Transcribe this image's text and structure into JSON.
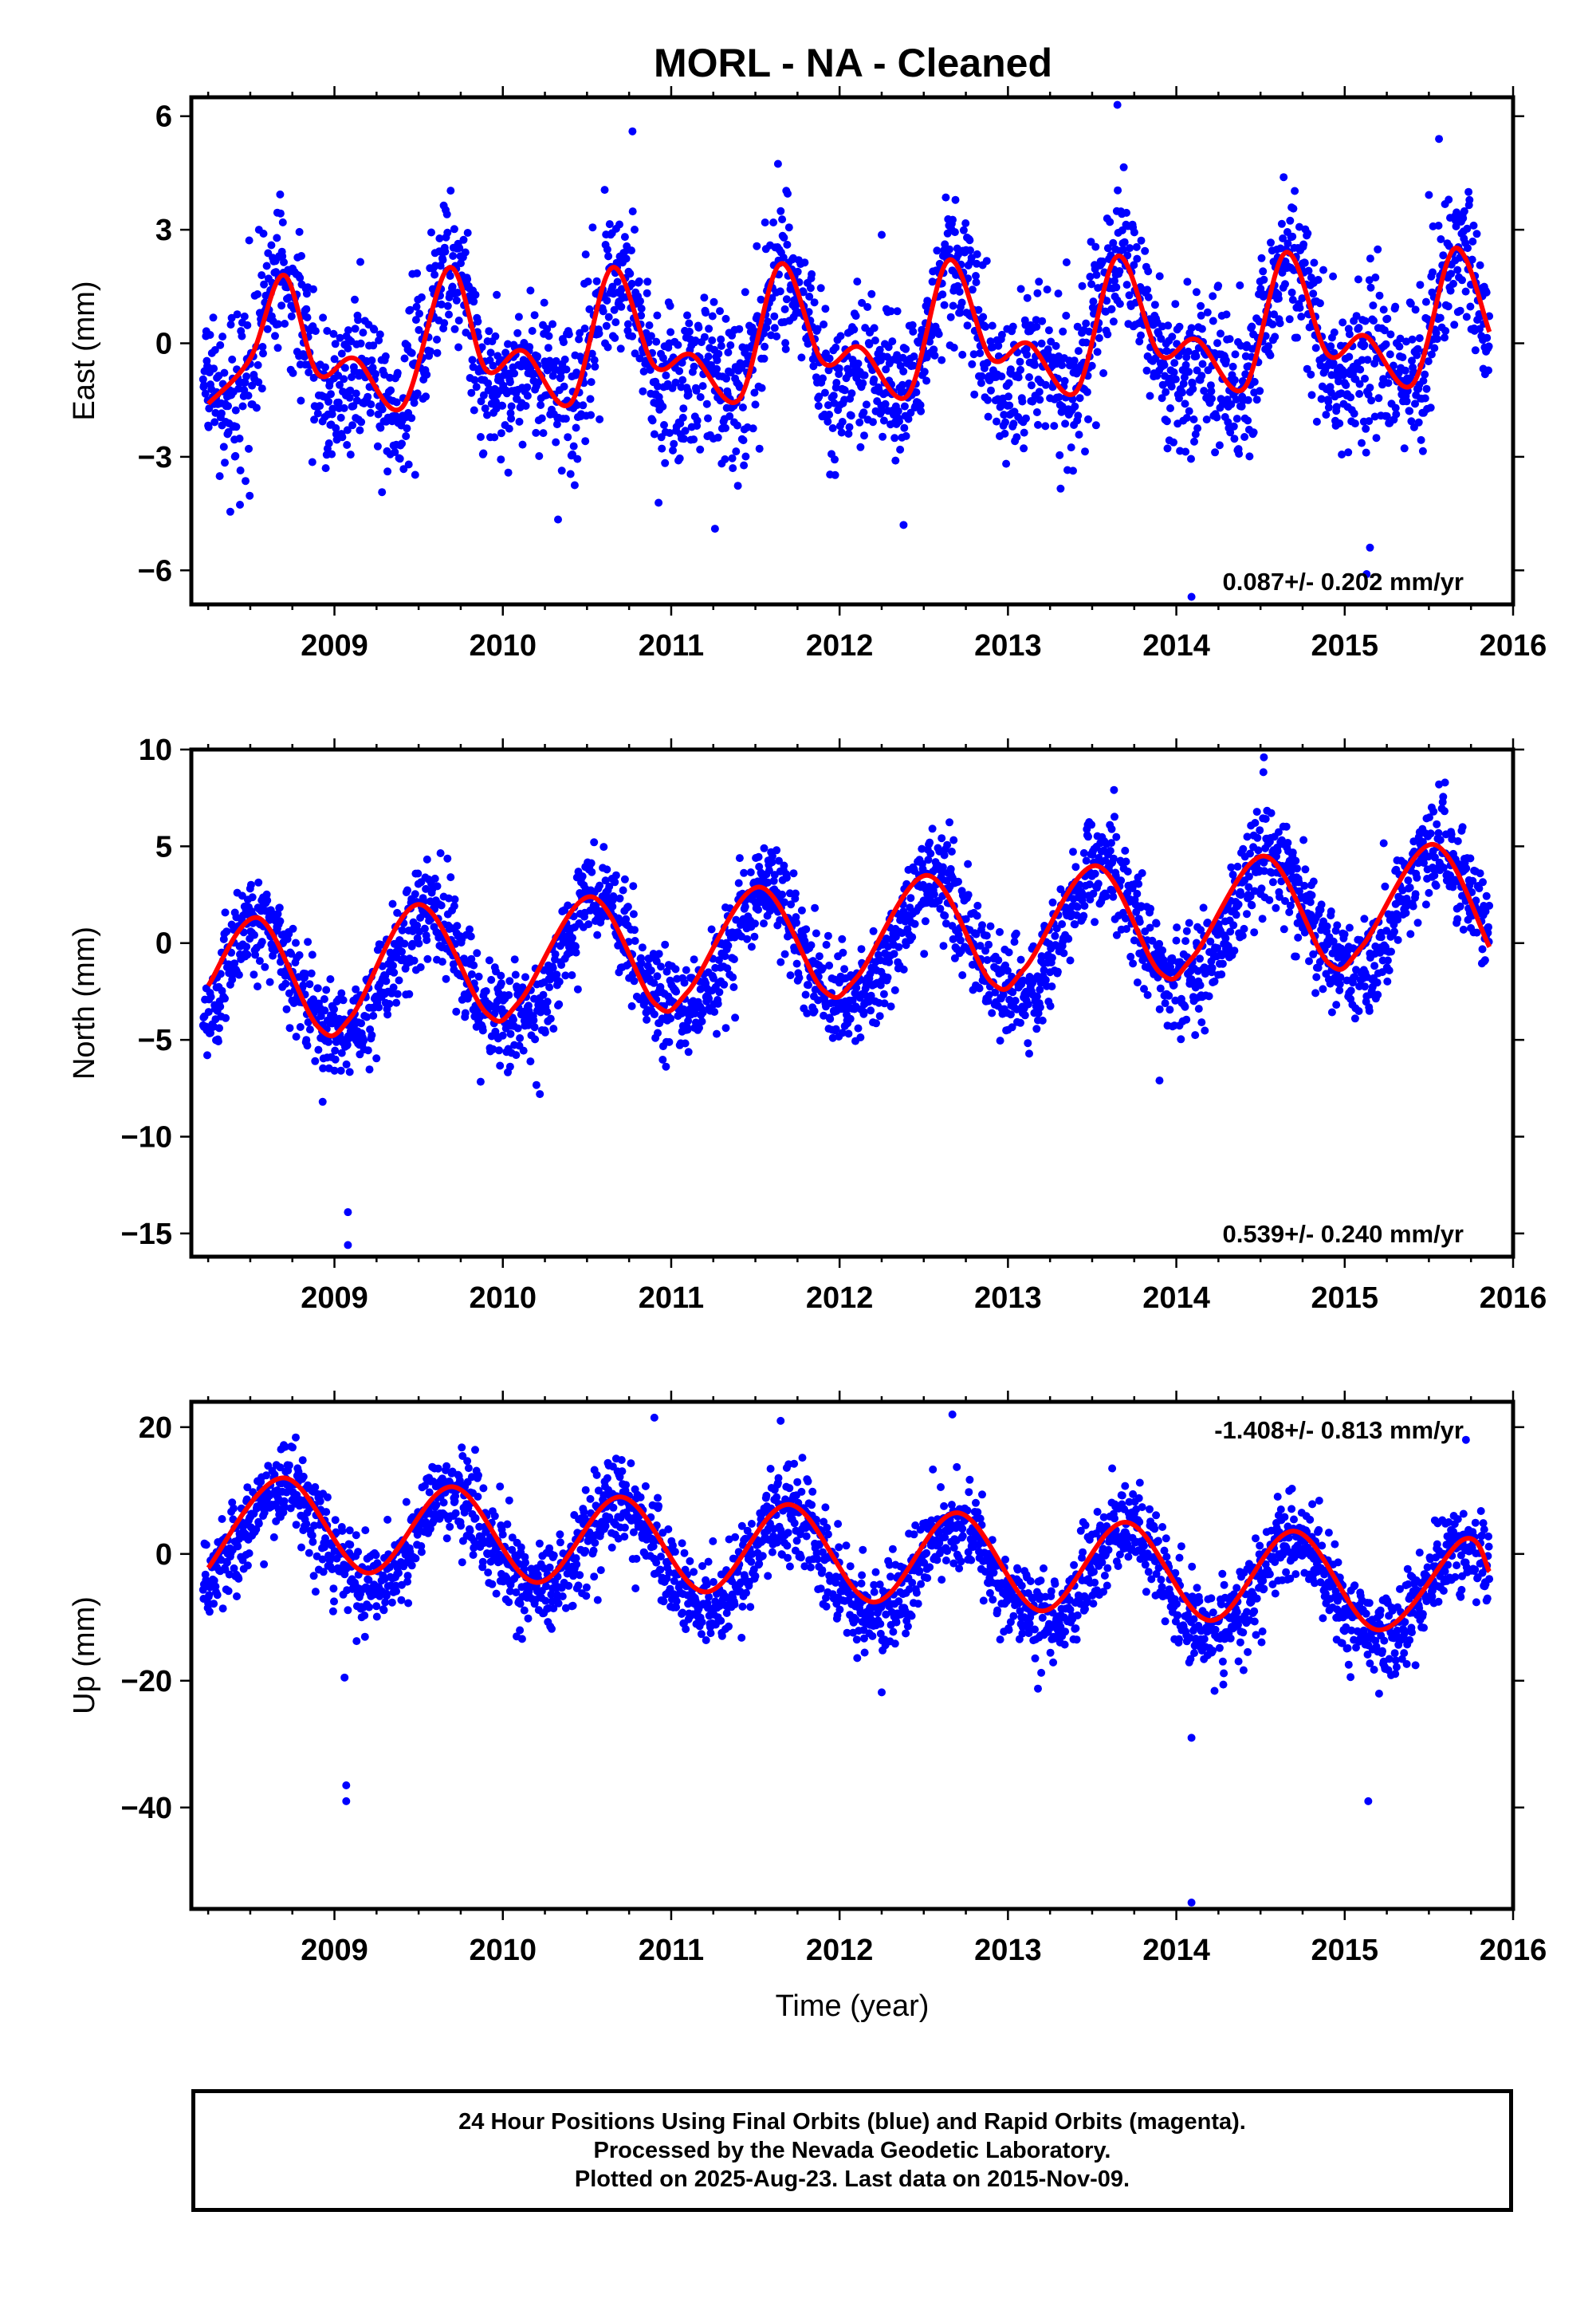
{
  "title": "MORL  - NA - Cleaned",
  "footer": {
    "line1": "24 Hour Positions Using Final Orbits (blue) and Rapid Orbits (magenta).",
    "line2": "Processed by the Nevada Geodetic Laboratory.",
    "line3": "Plotted on 2025-Aug-23. Last data on 2015-Nov-09."
  },
  "colors": {
    "points": "#0000ff",
    "fit": "#ff0000",
    "frame": "#000000"
  },
  "chart_data": [
    {
      "type": "scatter",
      "ylabel": "East (mm)",
      "xlabel": "",
      "xlim": [
        2008.15,
        2016.0
      ],
      "ylim": [
        -6.9,
        6.5
      ],
      "xticks": [
        2009,
        2010,
        2011,
        2012,
        2013,
        2014,
        2015,
        2016
      ],
      "yticks": [
        -6,
        -3,
        0,
        3,
        6
      ],
      "yticklabels": [
        "−6",
        "−3",
        "0",
        "3",
        "6"
      ],
      "rate_label": "0.087+/- 0.202 mm/yr",
      "rate_position": "bottom-right",
      "data_range": [
        2008.22,
        2015.86
      ],
      "model": {
        "offset": -0.15,
        "rate": 0.087,
        "t0": 2012.0,
        "a1": 1.3,
        "p1": 2008.68,
        "a2": 0.9,
        "p2": 2008.68,
        "noise_sd": 1.0
      },
      "fit_series": {
        "name": "",
        "x": [
          2008.25,
          2008.5,
          2008.7,
          2008.9,
          2009.12,
          2009.4,
          2009.68,
          2009.9,
          2010.12,
          2010.4,
          2010.65,
          2010.9,
          2011.12,
          2011.4,
          2011.65,
          2011.9,
          2012.12,
          2012.4,
          2012.65,
          2012.9,
          2013.12,
          2013.4,
          2013.65,
          2013.9,
          2014.12,
          2014.4,
          2014.65,
          2014.9,
          2015.12,
          2015.4,
          2015.65,
          2015.86
        ],
        "y": [
          -1.6,
          -0.4,
          1.8,
          -0.8,
          -0.4,
          -1.7,
          2.0,
          -0.7,
          -0.2,
          -1.6,
          2.0,
          -0.6,
          -0.3,
          -1.5,
          2.1,
          -0.5,
          -0.1,
          -1.4,
          2.2,
          -0.4,
          0.0,
          -1.3,
          2.3,
          -0.3,
          0.1,
          -1.2,
          2.4,
          -0.3,
          0.2,
          -1.1,
          2.5,
          0.3
        ]
      },
      "outliers": [
        {
          "x": 2010.77,
          "y": 5.6
        },
        {
          "x": 2012.38,
          "y": -4.8
        },
        {
          "x": 2013.65,
          "y": 6.3
        },
        {
          "x": 2014.09,
          "y": -6.7
        },
        {
          "x": 2015.15,
          "y": -5.4
        },
        {
          "x": 2015.13,
          "y": -6.1
        },
        {
          "x": 2011.26,
          "y": -4.9
        },
        {
          "x": 2015.56,
          "y": 5.4
        }
      ]
    },
    {
      "type": "scatter",
      "ylabel": "North (mm)",
      "xlabel": "",
      "xlim": [
        2008.15,
        2016.0
      ],
      "ylim": [
        -16.2,
        10.0
      ],
      "xticks": [
        2009,
        2010,
        2011,
        2012,
        2013,
        2014,
        2015,
        2016
      ],
      "yticks": [
        -15,
        -10,
        -5,
        0,
        5,
        10
      ],
      "yticklabels": [
        "−15",
        "−10",
        "−5",
        "0",
        "5",
        "10"
      ],
      "rate_label": "0.539+/- 0.240 mm/yr",
      "rate_position": "bottom-right",
      "data_range": [
        2008.22,
        2015.86
      ],
      "model": {
        "offset": -0.3,
        "rate": 0.539,
        "t0": 2012.0,
        "a1": 3.1,
        "p1": 2008.55,
        "a2": 0.4,
        "p2": 2008.55,
        "noise_sd": 1.3
      },
      "fit_series": {
        "name": "",
        "x": [
          2008.25,
          2008.55,
          2008.9,
          2009.1,
          2009.5,
          2009.9,
          2010.1,
          2010.52,
          2010.9,
          2011.1,
          2011.52,
          2011.9,
          2012.1,
          2012.52,
          2012.9,
          2013.1,
          2013.52,
          2013.9,
          2014.1,
          2014.52,
          2014.9,
          2015.1,
          2015.52,
          2015.86
        ],
        "y": [
          -2.2,
          1.3,
          -4.3,
          -3.8,
          2.0,
          -3.6,
          -3.0,
          2.4,
          -3.1,
          -2.5,
          2.9,
          -2.4,
          -1.8,
          3.5,
          -2.0,
          -1.3,
          4.0,
          -1.5,
          -0.7,
          4.5,
          -1.0,
          -0.2,
          5.1,
          -0.2
        ]
      },
      "outliers": [
        {
          "x": 2009.08,
          "y": -13.9
        },
        {
          "x": 2009.08,
          "y": -15.6
        },
        {
          "x": 2008.93,
          "y": -8.2
        },
        {
          "x": 2010.22,
          "y": -7.8
        },
        {
          "x": 2013.9,
          "y": -7.1
        },
        {
          "x": 2014.52,
          "y": 9.6
        },
        {
          "x": 2015.56,
          "y": 8.2
        }
      ]
    },
    {
      "type": "scatter",
      "ylabel": "Up (mm)",
      "xlabel": "Time (year)",
      "xlim": [
        2008.15,
        2016.0
      ],
      "ylim": [
        -56,
        24
      ],
      "xticks": [
        2009,
        2010,
        2011,
        2012,
        2013,
        2014,
        2015,
        2016
      ],
      "yticks": [
        -40,
        -20,
        0,
        20
      ],
      "yticklabels": [
        "−40",
        "−20",
        "0",
        "20"
      ],
      "rate_label": "-1.408+/- 0.813 mm/yr",
      "rate_position": "top-right",
      "data_range": [
        2008.22,
        2015.86
      ],
      "model": {
        "offset": -1.8,
        "rate": -1.408,
        "t0": 2012.0,
        "a1": 7.6,
        "p1": 2008.7,
        "a2": 0.6,
        "p2": 2008.7,
        "noise_sd": 3.6
      },
      "fit_series": {
        "name": "",
        "x": [
          2008.25,
          2008.7,
          2009.2,
          2009.7,
          2010.2,
          2010.7,
          2011.2,
          2011.7,
          2012.2,
          2012.7,
          2013.2,
          2013.7,
          2014.2,
          2014.7,
          2015.2,
          2015.7,
          2015.86
        ],
        "y": [
          -2.2,
          12.0,
          -3.0,
          10.6,
          -4.5,
          9.0,
          -6.0,
          7.8,
          -7.6,
          6.5,
          -9.0,
          5.0,
          -10.5,
          3.6,
          -12.0,
          2.2,
          -2.8
        ]
      },
      "outliers": [
        {
          "x": 2009.07,
          "y": -36.5
        },
        {
          "x": 2009.07,
          "y": -39.0
        },
        {
          "x": 2009.06,
          "y": -19.5
        },
        {
          "x": 2014.09,
          "y": -29.0
        },
        {
          "x": 2014.09,
          "y": -55.0
        },
        {
          "x": 2015.14,
          "y": -39.0
        },
        {
          "x": 2010.9,
          "y": 21.5
        },
        {
          "x": 2012.67,
          "y": 22.0
        },
        {
          "x": 2011.65,
          "y": 21.0
        },
        {
          "x": 2015.72,
          "y": 18.0
        }
      ]
    }
  ]
}
